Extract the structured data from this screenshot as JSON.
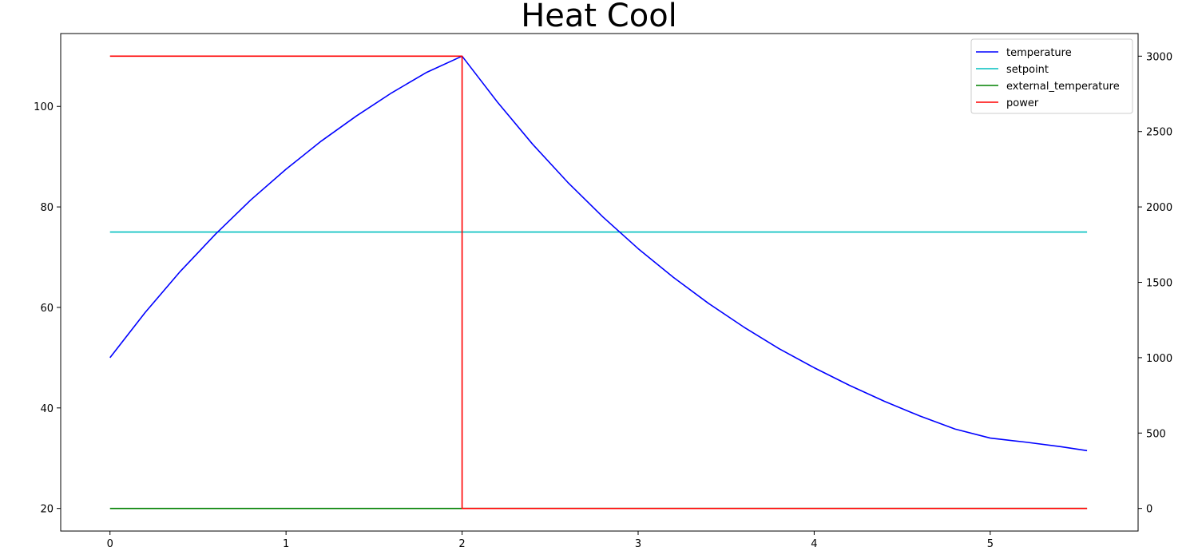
{
  "chart_data": {
    "type": "line",
    "title": "Heat Cool",
    "xlabel": "",
    "ylabel": "",
    "y2label": "",
    "xlim": [
      -0.28,
      5.84
    ],
    "ylim": [
      15.5,
      114.5
    ],
    "y2lim": [
      -150,
      3150
    ],
    "xticks": [
      0,
      1,
      2,
      3,
      4,
      5
    ],
    "yticks": [
      20,
      40,
      60,
      80,
      100
    ],
    "y2ticks": [
      0,
      500,
      1000,
      1500,
      2000,
      2500,
      3000
    ],
    "grid": false,
    "legend_position": "top-right",
    "series": [
      {
        "name": "temperature",
        "axis": "left",
        "color": "#0000ff",
        "x": [
          0,
          0.2,
          0.4,
          0.6,
          0.8,
          1.0,
          1.2,
          1.4,
          1.6,
          1.8,
          2.0,
          2.2,
          2.4,
          2.6,
          2.8,
          3.0,
          3.2,
          3.4,
          3.6,
          3.8,
          4.0,
          4.2,
          4.4,
          4.6,
          4.8,
          5.0,
          5.2,
          5.4,
          5.55
        ],
        "y": [
          50.0,
          59.0,
          67.2,
          74.6,
          81.4,
          87.5,
          93.1,
          98.1,
          102.7,
          106.8,
          110.0,
          100.9,
          92.5,
          84.9,
          78.0,
          71.7,
          66.0,
          60.8,
          56.1,
          51.8,
          48.0,
          44.5,
          41.3,
          38.4,
          35.8,
          34.0,
          33.2,
          32.3,
          31.5
        ]
      },
      {
        "name": "setpoint",
        "axis": "left",
        "color": "#00bfbf",
        "x": [
          0,
          5.55
        ],
        "y": [
          75,
          75
        ]
      },
      {
        "name": "external_temperature",
        "axis": "left",
        "color": "#008000",
        "x": [
          0,
          5.55
        ],
        "y": [
          20,
          20
        ]
      },
      {
        "name": "power",
        "axis": "right",
        "color": "#ff0000",
        "x": [
          0,
          2.0,
          2.0,
          5.55
        ],
        "y": [
          3000,
          3000,
          0,
          0
        ]
      }
    ]
  }
}
